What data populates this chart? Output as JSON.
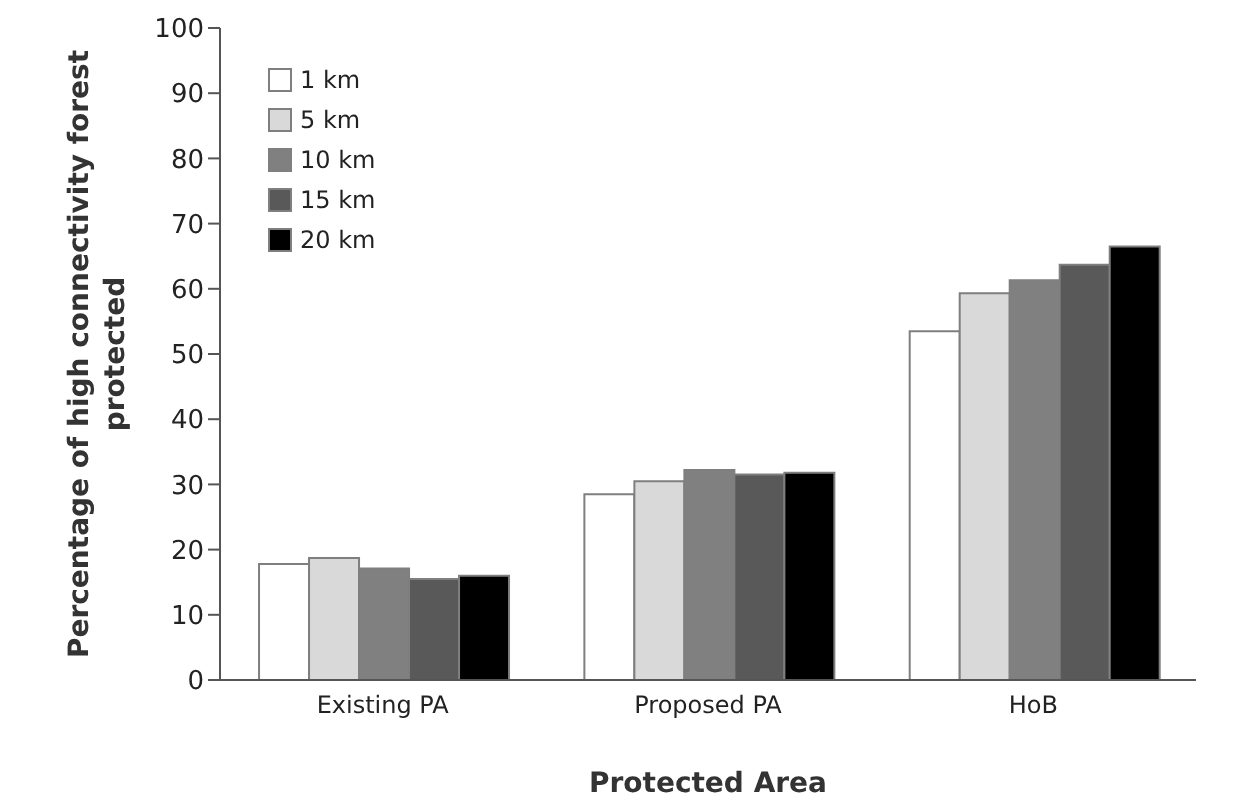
{
  "chart_data": {
    "type": "bar",
    "xlabel": "Protected Area",
    "ylabel": "Percentage of high connectivity forest protected",
    "categories": [
      "Existing PA",
      "Proposed PA",
      "HoB"
    ],
    "series": [
      {
        "name": "1 km",
        "color": "#ffffff",
        "values": [
          17.8,
          28.5,
          53.5
        ]
      },
      {
        "name": "5 km",
        "color": "#d9d9d9",
        "values": [
          18.7,
          30.5,
          59.3
        ]
      },
      {
        "name": "10 km",
        "color": "#808080",
        "values": [
          17.1,
          32.2,
          61.3
        ]
      },
      {
        "name": "15 km",
        "color": "#595959",
        "values": [
          15.5,
          31.5,
          63.7
        ]
      },
      {
        "name": "20 km",
        "color": "#000000",
        "values": [
          16.0,
          31.8,
          66.5
        ]
      }
    ],
    "ylim": [
      0,
      100
    ],
    "yticks": [
      0,
      10,
      20,
      30,
      40,
      50,
      60,
      70,
      80,
      90,
      100
    ],
    "grid": false,
    "legend": "top left"
  }
}
